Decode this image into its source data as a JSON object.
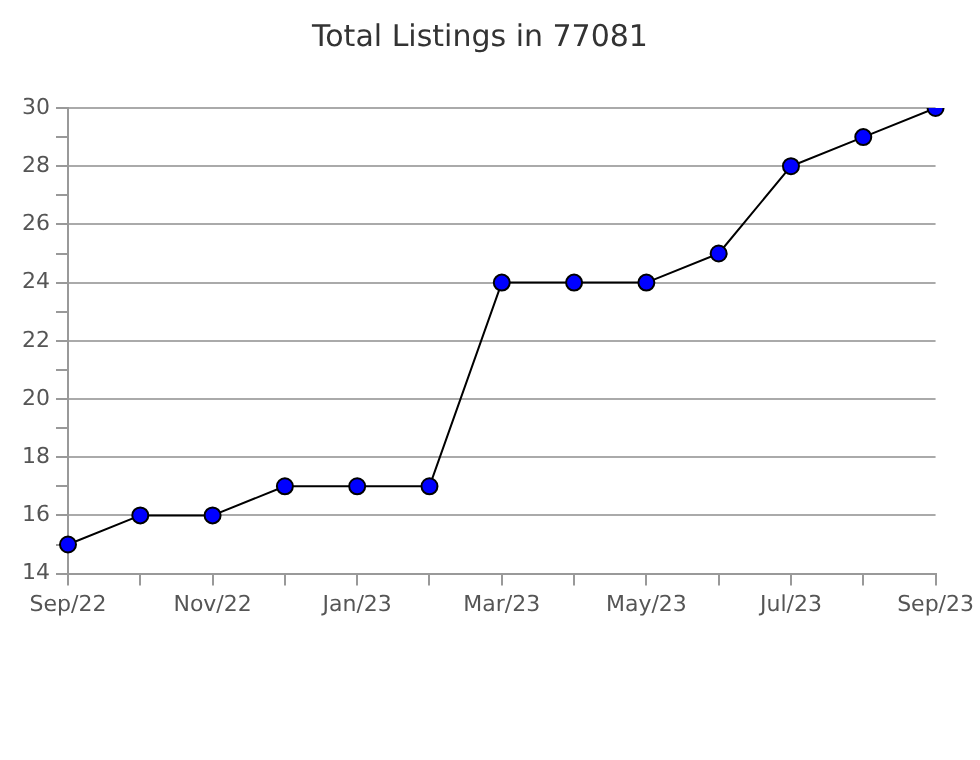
{
  "chart_data": {
    "type": "line",
    "title": "Total Listings in 77081",
    "categories": [
      "Sep/22",
      null,
      "Nov/22",
      null,
      "Jan/23",
      null,
      "Mar/23",
      null,
      "May/23",
      null,
      "Jul/23",
      null,
      "Sep/23"
    ],
    "series": [
      {
        "color": "#000000",
        "colors": [
          "#0000ff",
          "#0000ff",
          "#0000ff",
          "#0000ff",
          "#0000ff",
          "#0000ff",
          "#0000ff",
          "#0000ff",
          "#0000ff",
          "#0000ff",
          "#0000ff",
          "#0000ff",
          "#0000ff"
        ],
        "values": [
          15,
          16,
          16,
          17,
          17,
          17,
          24,
          24,
          24,
          25,
          28,
          29,
          30
        ]
      }
    ],
    "ylim": [
      14,
      30
    ],
    "yticks": [
      14,
      {
        "value": 15,
        "label": null
      },
      16,
      {
        "value": 17,
        "label": null
      },
      18,
      {
        "value": 19,
        "label": null
      },
      20,
      {
        "value": 21,
        "label": null
      },
      22,
      {
        "value": 23,
        "label": null
      },
      24,
      {
        "value": 25,
        "label": null
      },
      26,
      {
        "value": 27,
        "label": null
      },
      28,
      {
        "value": 29,
        "label": null
      },
      30
    ],
    "grid": "y",
    "marker": "circle",
    "legend": false
  }
}
